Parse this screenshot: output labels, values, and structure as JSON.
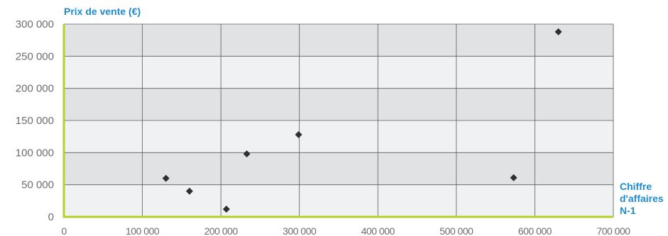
{
  "chart_data": {
    "type": "scatter",
    "title": "",
    "ylabel": "Prix de vente (€)",
    "xlabel_lines": [
      "Chiffre",
      "d'affaires",
      "N-1"
    ],
    "xlim": [
      0,
      700000
    ],
    "ylim": [
      0,
      300000
    ],
    "x_ticks": [
      0,
      100000,
      200000,
      300000,
      400000,
      500000,
      600000,
      700000
    ],
    "x_tick_labels": [
      "0",
      "100 000",
      "200 000",
      "300 000",
      "400 000",
      "500 000",
      "600 000",
      "700 000"
    ],
    "y_ticks": [
      0,
      50000,
      100000,
      150000,
      200000,
      250000,
      300000
    ],
    "y_tick_labels": [
      "0",
      "50 000",
      "100 000",
      "150 000",
      "200 000",
      "250 000",
      "300 000"
    ],
    "grid": true,
    "points": [
      {
        "x": 130000,
        "y": 60000
      },
      {
        "x": 160000,
        "y": 40000
      },
      {
        "x": 207000,
        "y": 12000
      },
      {
        "x": 233000,
        "y": 98000
      },
      {
        "x": 299000,
        "y": 128000
      },
      {
        "x": 573000,
        "y": 61000
      },
      {
        "x": 630000,
        "y": 288000
      }
    ],
    "colors": {
      "band_dark": "#e1e2e3",
      "band_light": "#f0f1f2",
      "grid": "#5c5c5c",
      "axis": "#b7cf2a",
      "marker": "#2f2f2f",
      "title": "#1e8bd0",
      "tick": "#6d6d6d"
    }
  }
}
